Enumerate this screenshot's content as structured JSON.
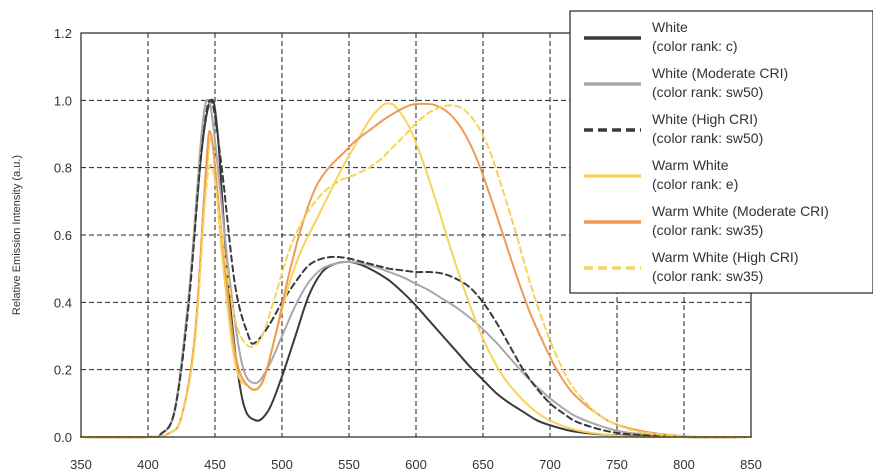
{
  "chart_data": {
    "type": "line",
    "title": "",
    "xlabel": "",
    "ylabel": "Relative Emission Intensity (a.u.)",
    "xlim": [
      350,
      850
    ],
    "ylim": [
      0.0,
      1.2
    ],
    "x_ticks": [
      "350",
      "400",
      "450",
      "500",
      "550",
      "600",
      "650",
      "700",
      "750",
      "800",
      "850"
    ],
    "y_ticks": [
      "0.0",
      "0.2",
      "0.4",
      "0.6",
      "0.8",
      "1.0",
      "1.2"
    ],
    "grid": true,
    "legend_position": "top-right",
    "series": [
      {
        "name": "White",
        "name_line2": "(color rank: c)",
        "color": "#3a3a3a",
        "style": "solid",
        "points": [
          [
            350,
            0
          ],
          [
            400,
            0
          ],
          [
            410,
            0.01
          ],
          [
            420,
            0.08
          ],
          [
            430,
            0.4
          ],
          [
            440,
            0.85
          ],
          [
            447,
            1.0
          ],
          [
            452,
            0.9
          ],
          [
            460,
            0.45
          ],
          [
            470,
            0.12
          ],
          [
            480,
            0.05
          ],
          [
            490,
            0.08
          ],
          [
            500,
            0.18
          ],
          [
            510,
            0.3
          ],
          [
            520,
            0.42
          ],
          [
            530,
            0.49
          ],
          [
            540,
            0.515
          ],
          [
            550,
            0.52
          ],
          [
            560,
            0.51
          ],
          [
            570,
            0.49
          ],
          [
            580,
            0.465
          ],
          [
            590,
            0.43
          ],
          [
            600,
            0.39
          ],
          [
            610,
            0.345
          ],
          [
            620,
            0.3
          ],
          [
            630,
            0.255
          ],
          [
            640,
            0.21
          ],
          [
            650,
            0.17
          ],
          [
            660,
            0.13
          ],
          [
            670,
            0.1
          ],
          [
            680,
            0.075
          ],
          [
            690,
            0.05
          ],
          [
            700,
            0.035
          ],
          [
            720,
            0.015
          ],
          [
            750,
            0.005
          ],
          [
            800,
            0
          ],
          [
            850,
            0
          ]
        ]
      },
      {
        "name": "White (Moderate CRI)",
        "name_line2": "(color rank: sw50)",
        "color": "#a8a8a8",
        "style": "solid",
        "points": [
          [
            350,
            0
          ],
          [
            400,
            0
          ],
          [
            410,
            0.01
          ],
          [
            420,
            0.08
          ],
          [
            430,
            0.4
          ],
          [
            440,
            0.9
          ],
          [
            445,
            1.0
          ],
          [
            450,
            0.88
          ],
          [
            460,
            0.5
          ],
          [
            470,
            0.22
          ],
          [
            480,
            0.16
          ],
          [
            490,
            0.21
          ],
          [
            500,
            0.3
          ],
          [
            510,
            0.39
          ],
          [
            520,
            0.46
          ],
          [
            530,
            0.5
          ],
          [
            540,
            0.515
          ],
          [
            550,
            0.52
          ],
          [
            560,
            0.515
          ],
          [
            570,
            0.505
          ],
          [
            580,
            0.49
          ],
          [
            590,
            0.475
          ],
          [
            600,
            0.455
          ],
          [
            610,
            0.435
          ],
          [
            620,
            0.41
          ],
          [
            630,
            0.385
          ],
          [
            640,
            0.355
          ],
          [
            650,
            0.32
          ],
          [
            660,
            0.28
          ],
          [
            670,
            0.235
          ],
          [
            680,
            0.19
          ],
          [
            690,
            0.15
          ],
          [
            700,
            0.115
          ],
          [
            710,
            0.085
          ],
          [
            720,
            0.06
          ],
          [
            740,
            0.03
          ],
          [
            760,
            0.012
          ],
          [
            800,
            0
          ],
          [
            850,
            0
          ]
        ]
      },
      {
        "name": "White (High CRI)",
        "name_line2": "(color rank: sw50)",
        "color": "#3a3a3a",
        "style": "dashed",
        "points": [
          [
            350,
            0
          ],
          [
            400,
            0
          ],
          [
            410,
            0.01
          ],
          [
            420,
            0.08
          ],
          [
            430,
            0.38
          ],
          [
            440,
            0.85
          ],
          [
            447,
            1.0
          ],
          [
            455,
            0.8
          ],
          [
            465,
            0.45
          ],
          [
            475,
            0.3
          ],
          [
            480,
            0.28
          ],
          [
            490,
            0.33
          ],
          [
            500,
            0.4
          ],
          [
            510,
            0.46
          ],
          [
            520,
            0.51
          ],
          [
            530,
            0.53
          ],
          [
            540,
            0.535
          ],
          [
            550,
            0.53
          ],
          [
            560,
            0.52
          ],
          [
            570,
            0.51
          ],
          [
            580,
            0.5
          ],
          [
            590,
            0.495
          ],
          [
            600,
            0.49
          ],
          [
            610,
            0.49
          ],
          [
            620,
            0.485
          ],
          [
            630,
            0.47
          ],
          [
            640,
            0.445
          ],
          [
            650,
            0.4
          ],
          [
            660,
            0.34
          ],
          [
            670,
            0.27
          ],
          [
            680,
            0.2
          ],
          [
            690,
            0.145
          ],
          [
            700,
            0.1
          ],
          [
            710,
            0.07
          ],
          [
            720,
            0.045
          ],
          [
            740,
            0.02
          ],
          [
            760,
            0.008
          ],
          [
            800,
            0
          ],
          [
            850,
            0
          ]
        ]
      },
      {
        "name": "Warm White",
        "name_line2": "(color rank: e)",
        "color": "#f7d35a",
        "style": "solid",
        "points": [
          [
            350,
            0
          ],
          [
            400,
            0
          ],
          [
            415,
            0.01
          ],
          [
            425,
            0.06
          ],
          [
            435,
            0.3
          ],
          [
            443,
            0.75
          ],
          [
            448,
            0.88
          ],
          [
            455,
            0.55
          ],
          [
            465,
            0.22
          ],
          [
            475,
            0.15
          ],
          [
            485,
            0.16
          ],
          [
            495,
            0.3
          ],
          [
            505,
            0.45
          ],
          [
            515,
            0.56
          ],
          [
            525,
            0.64
          ],
          [
            535,
            0.72
          ],
          [
            545,
            0.8
          ],
          [
            555,
            0.87
          ],
          [
            565,
            0.94
          ],
          [
            575,
            0.985
          ],
          [
            580,
            0.99
          ],
          [
            585,
            0.98
          ],
          [
            595,
            0.92
          ],
          [
            605,
            0.82
          ],
          [
            615,
            0.7
          ],
          [
            625,
            0.57
          ],
          [
            635,
            0.45
          ],
          [
            645,
            0.34
          ],
          [
            655,
            0.25
          ],
          [
            665,
            0.18
          ],
          [
            675,
            0.13
          ],
          [
            685,
            0.09
          ],
          [
            695,
            0.06
          ],
          [
            705,
            0.04
          ],
          [
            720,
            0.02
          ],
          [
            740,
            0.008
          ],
          [
            770,
            0
          ],
          [
            850,
            0
          ]
        ]
      },
      {
        "name": "Warm White (Moderate CRI)",
        "name_line2": "(color rank: sw35)",
        "color": "#ef9a55",
        "style": "solid",
        "points": [
          [
            350,
            0
          ],
          [
            400,
            0
          ],
          [
            415,
            0.01
          ],
          [
            425,
            0.06
          ],
          [
            435,
            0.3
          ],
          [
            443,
            0.78
          ],
          [
            447,
            0.9
          ],
          [
            455,
            0.6
          ],
          [
            465,
            0.25
          ],
          [
            475,
            0.15
          ],
          [
            485,
            0.16
          ],
          [
            495,
            0.3
          ],
          [
            505,
            0.48
          ],
          [
            515,
            0.63
          ],
          [
            525,
            0.74
          ],
          [
            535,
            0.8
          ],
          [
            545,
            0.84
          ],
          [
            555,
            0.88
          ],
          [
            565,
            0.91
          ],
          [
            575,
            0.94
          ],
          [
            585,
            0.965
          ],
          [
            595,
            0.985
          ],
          [
            605,
            0.99
          ],
          [
            615,
            0.985
          ],
          [
            625,
            0.96
          ],
          [
            635,
            0.91
          ],
          [
            645,
            0.83
          ],
          [
            655,
            0.72
          ],
          [
            665,
            0.6
          ],
          [
            675,
            0.48
          ],
          [
            685,
            0.37
          ],
          [
            695,
            0.28
          ],
          [
            705,
            0.2
          ],
          [
            715,
            0.14
          ],
          [
            725,
            0.1
          ],
          [
            735,
            0.07
          ],
          [
            745,
            0.045
          ],
          [
            760,
            0.025
          ],
          [
            780,
            0.01
          ],
          [
            810,
            0
          ],
          [
            850,
            0
          ]
        ]
      },
      {
        "name": "Warm White (High CRI)",
        "name_line2": "(color rank: sw35)",
        "color": "#f7d35a",
        "style": "dashed",
        "points": [
          [
            350,
            0
          ],
          [
            400,
            0
          ],
          [
            415,
            0.01
          ],
          [
            425,
            0.06
          ],
          [
            435,
            0.28
          ],
          [
            443,
            0.72
          ],
          [
            448,
            0.8
          ],
          [
            455,
            0.6
          ],
          [
            465,
            0.35
          ],
          [
            475,
            0.27
          ],
          [
            485,
            0.3
          ],
          [
            495,
            0.42
          ],
          [
            505,
            0.55
          ],
          [
            515,
            0.64
          ],
          [
            525,
            0.7
          ],
          [
            535,
            0.74
          ],
          [
            545,
            0.765
          ],
          [
            555,
            0.78
          ],
          [
            565,
            0.8
          ],
          [
            575,
            0.83
          ],
          [
            585,
            0.87
          ],
          [
            595,
            0.91
          ],
          [
            605,
            0.95
          ],
          [
            615,
            0.975
          ],
          [
            625,
            0.985
          ],
          [
            635,
            0.975
          ],
          [
            645,
            0.93
          ],
          [
            655,
            0.85
          ],
          [
            665,
            0.73
          ],
          [
            675,
            0.6
          ],
          [
            685,
            0.46
          ],
          [
            695,
            0.34
          ],
          [
            705,
            0.24
          ],
          [
            715,
            0.16
          ],
          [
            725,
            0.11
          ],
          [
            735,
            0.07
          ],
          [
            745,
            0.045
          ],
          [
            760,
            0.022
          ],
          [
            780,
            0.008
          ],
          [
            810,
            0
          ],
          [
            850,
            0
          ]
        ]
      }
    ]
  }
}
